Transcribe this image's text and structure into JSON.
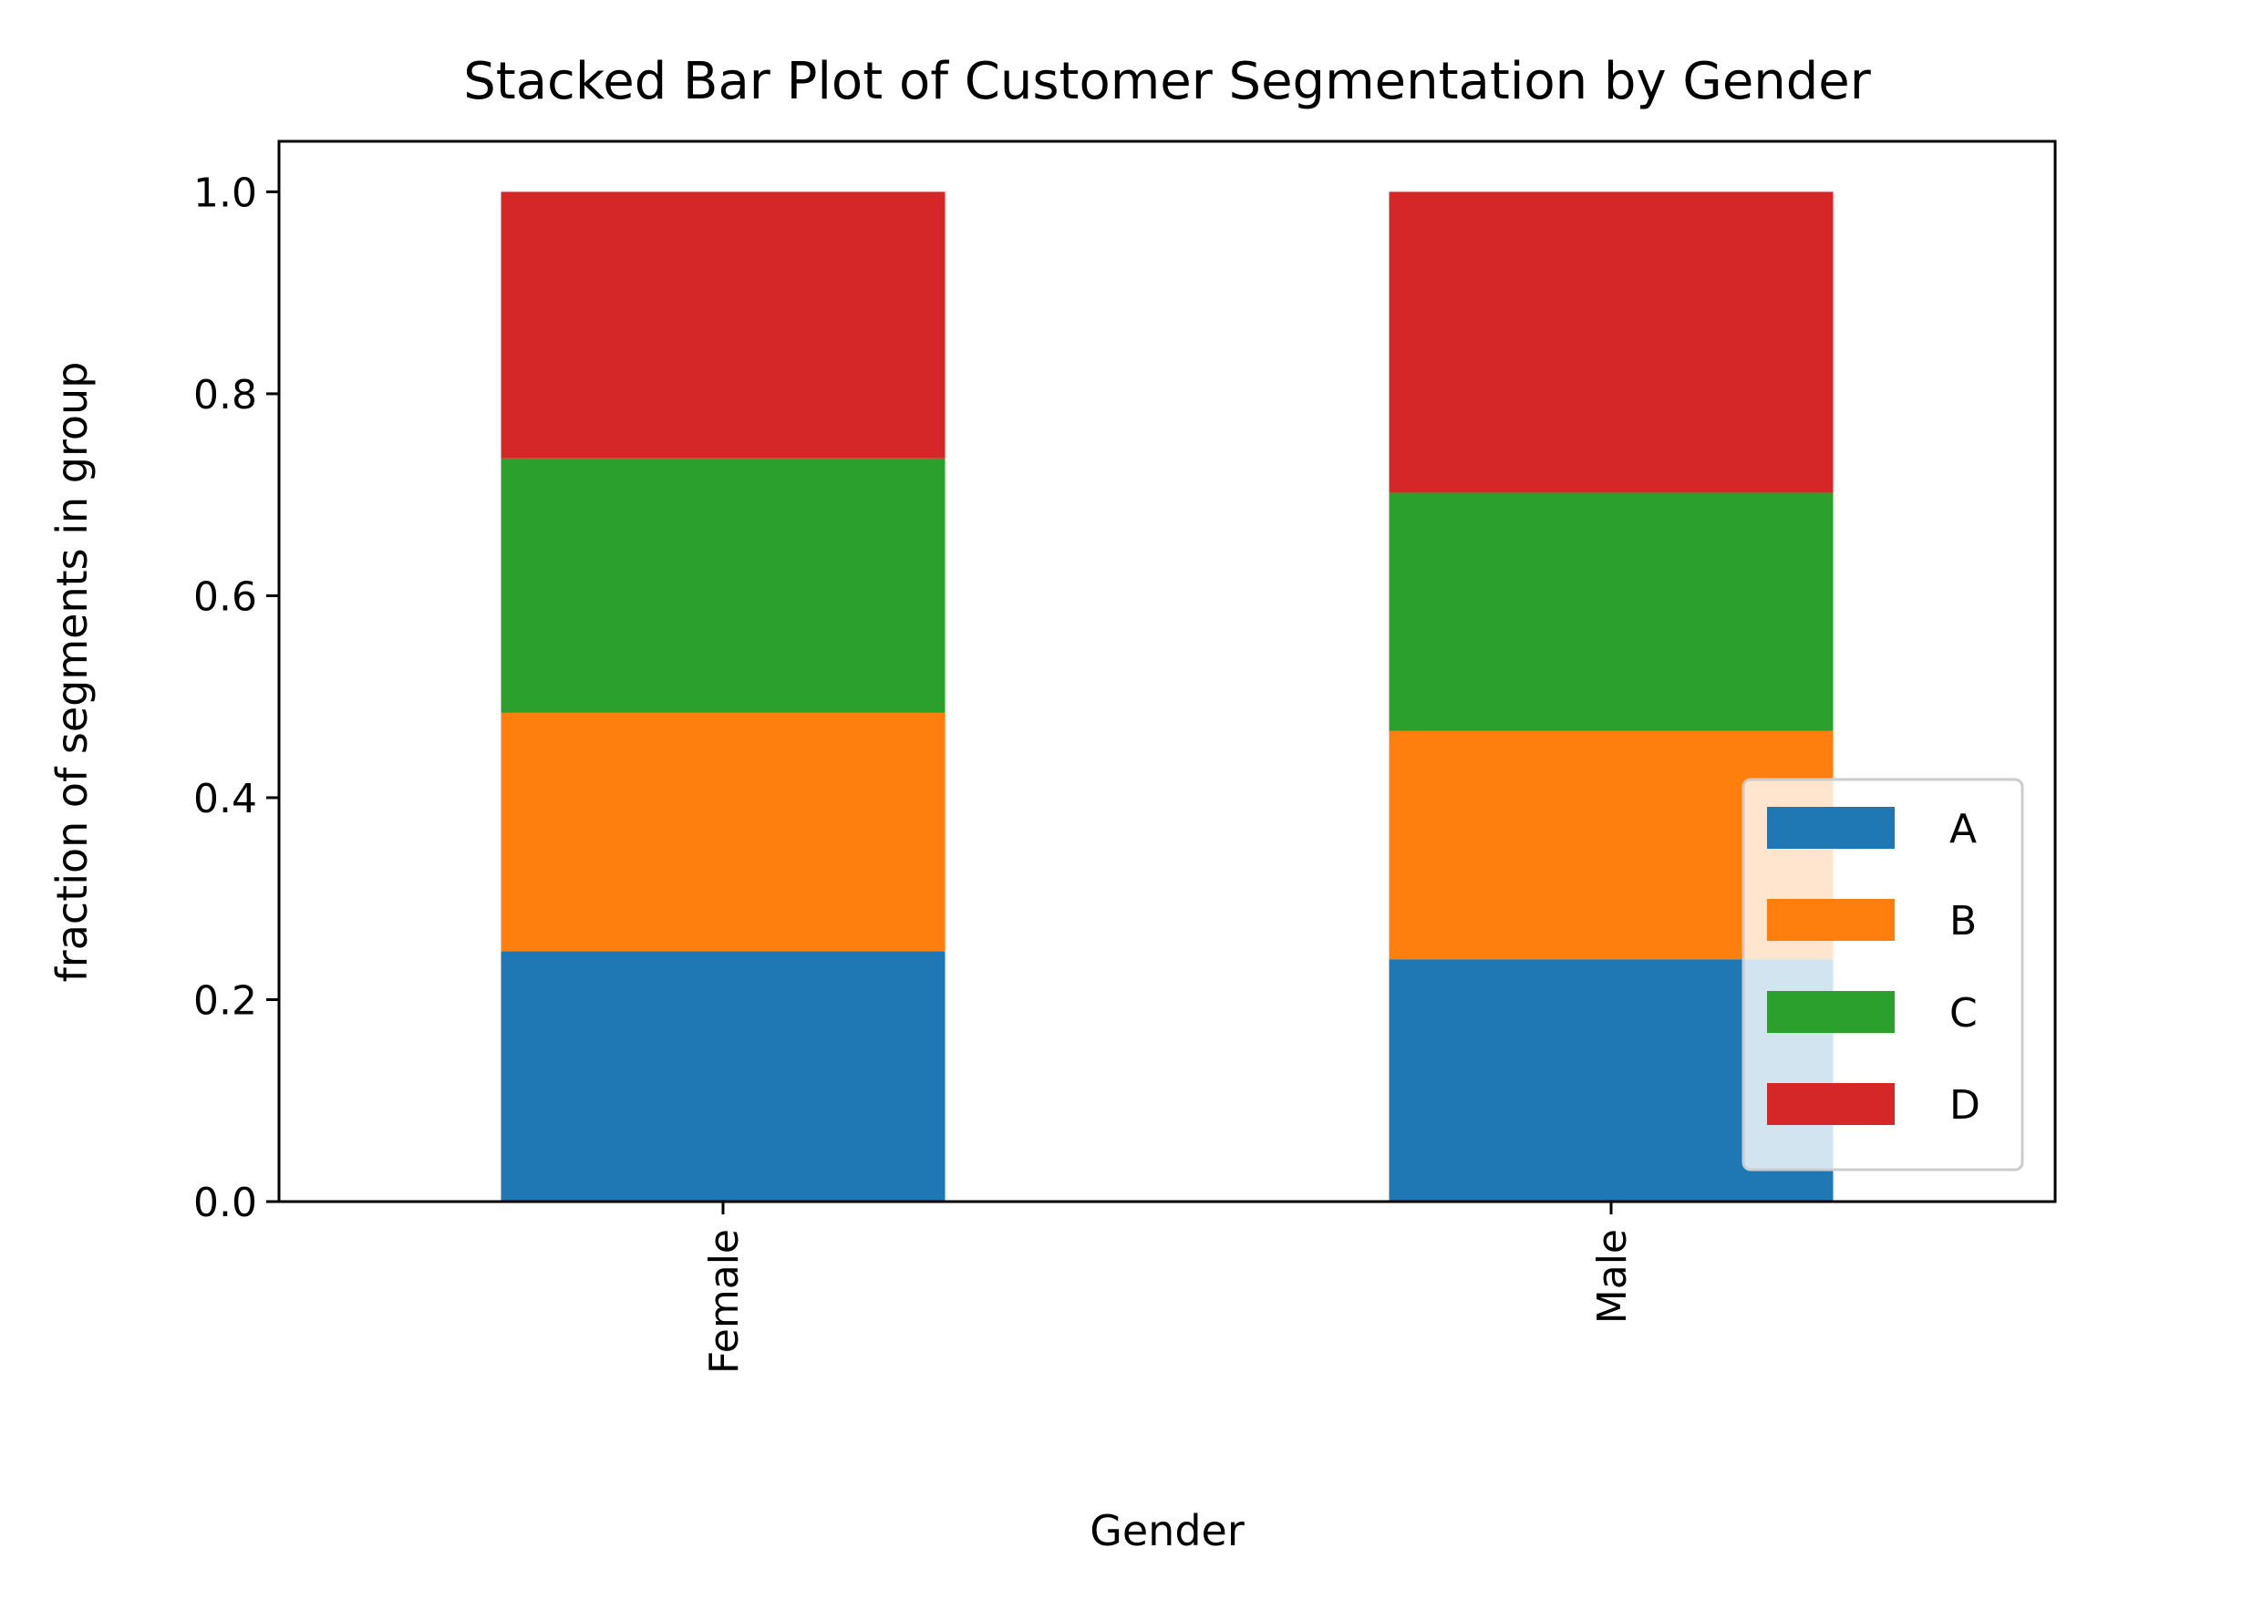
{
  "chart_data": {
    "type": "bar",
    "stacked": true,
    "title": "Stacked Bar Plot of Customer Segmentation by Gender",
    "xlabel": "Gender",
    "ylabel": "fraction of segments in group",
    "categories": [
      "Female",
      "Male"
    ],
    "series": [
      {
        "name": "A",
        "color": "#1f77b4",
        "values": [
          0.248,
          0.24
        ]
      },
      {
        "name": "B",
        "color": "#ff7f0e",
        "values": [
          0.236,
          0.226
        ]
      },
      {
        "name": "C",
        "color": "#2ca02c",
        "values": [
          0.252,
          0.236
        ]
      },
      {
        "name": "D",
        "color": "#d62728",
        "values": [
          0.264,
          0.298
        ]
      }
    ],
    "ylim": [
      0,
      1.05
    ],
    "yticks": [
      0.0,
      0.2,
      0.4,
      0.6,
      0.8,
      1.0
    ],
    "ytick_labels": [
      "0.0",
      "0.2",
      "0.4",
      "0.6",
      "0.8",
      "1.0"
    ],
    "grid": false,
    "legend": {
      "placement": "lower-right",
      "entries": [
        "A",
        "B",
        "C",
        "D"
      ]
    }
  }
}
